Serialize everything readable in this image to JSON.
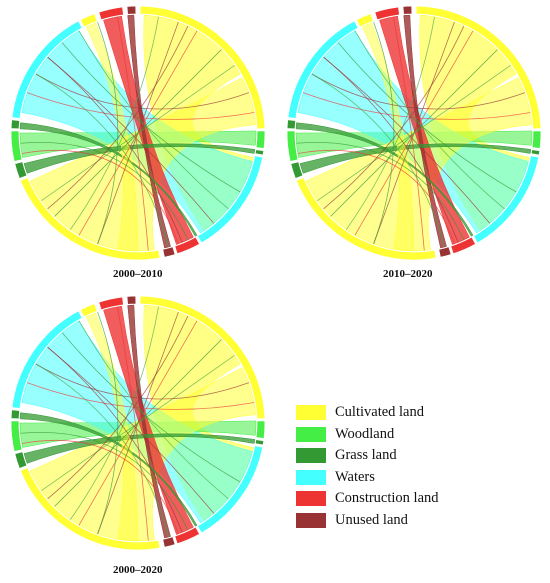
{
  "colors": {
    "cultivated": "#ffff33",
    "woodland": "#44ee44",
    "grass": "#339933",
    "waters": "#44ffff",
    "construction": "#ee3333",
    "unused": "#993333"
  },
  "panels": [
    {
      "caption": "2000–2010"
    },
    {
      "caption": "2010–2020"
    },
    {
      "caption": "2000–2020"
    }
  ],
  "legend": [
    {
      "label": "Cultivated land",
      "color": "#ffff33"
    },
    {
      "label": "Woodland",
      "color": "#44ee44"
    },
    {
      "label": "Grass land",
      "color": "#339933"
    },
    {
      "label": "Waters",
      "color": "#44ffff"
    },
    {
      "label": "Construction land",
      "color": "#ee3333"
    },
    {
      "label": "Unused land",
      "color": "#993333"
    }
  ]
}
